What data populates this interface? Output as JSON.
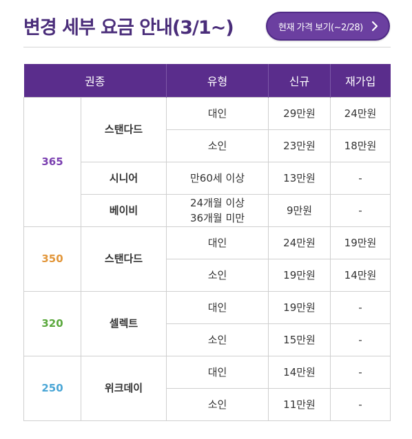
{
  "title": "변경 세부 요금 안내(3/1~)",
  "prev_button": {
    "label": "현재 가격 보기(~2/28)",
    "icon": "chevron-right-icon"
  },
  "colors": {
    "header_bg": "#5a2d8c",
    "title": "#4a2d7a",
    "c365": "#7a3fb0",
    "c350": "#e2963a",
    "c320": "#5aa83c",
    "c250": "#4aa6d6"
  },
  "table": {
    "headers": [
      "권종",
      "유형",
      "신규",
      "재가입"
    ],
    "groups": [
      {
        "category": "365",
        "types": [
          {
            "name": "스탠다드",
            "rows": [
              {
                "kind": "대인",
                "new": "29만원",
                "rejoin": "24만원"
              },
              {
                "kind": "소인",
                "new": "23만원",
                "rejoin": "18만원"
              }
            ]
          },
          {
            "name": "시니어",
            "rows": [
              {
                "kind": "만60세 이상",
                "new": "13만원",
                "rejoin": "-"
              }
            ]
          },
          {
            "name": "베이비",
            "rows": [
              {
                "kind_line1": "24개월 이상",
                "kind_line2": "36개월 미만",
                "new": "9만원",
                "rejoin": "-"
              }
            ]
          }
        ]
      },
      {
        "category": "350",
        "types": [
          {
            "name": "스탠다드",
            "rows": [
              {
                "kind": "대인",
                "new": "24만원",
                "rejoin": "19만원"
              },
              {
                "kind": "소인",
                "new": "19만원",
                "rejoin": "14만원"
              }
            ]
          }
        ]
      },
      {
        "category": "320",
        "types": [
          {
            "name": "셀렉트",
            "rows": [
              {
                "kind": "대인",
                "new": "19만원",
                "rejoin": "-"
              },
              {
                "kind": "소인",
                "new": "15만원",
                "rejoin": "-"
              }
            ]
          }
        ]
      },
      {
        "category": "250",
        "types": [
          {
            "name": "위크데이",
            "rows": [
              {
                "kind": "대인",
                "new": "14만원",
                "rejoin": "-"
              },
              {
                "kind": "소인",
                "new": "11만원",
                "rejoin": "-"
              }
            ]
          }
        ]
      }
    ]
  }
}
